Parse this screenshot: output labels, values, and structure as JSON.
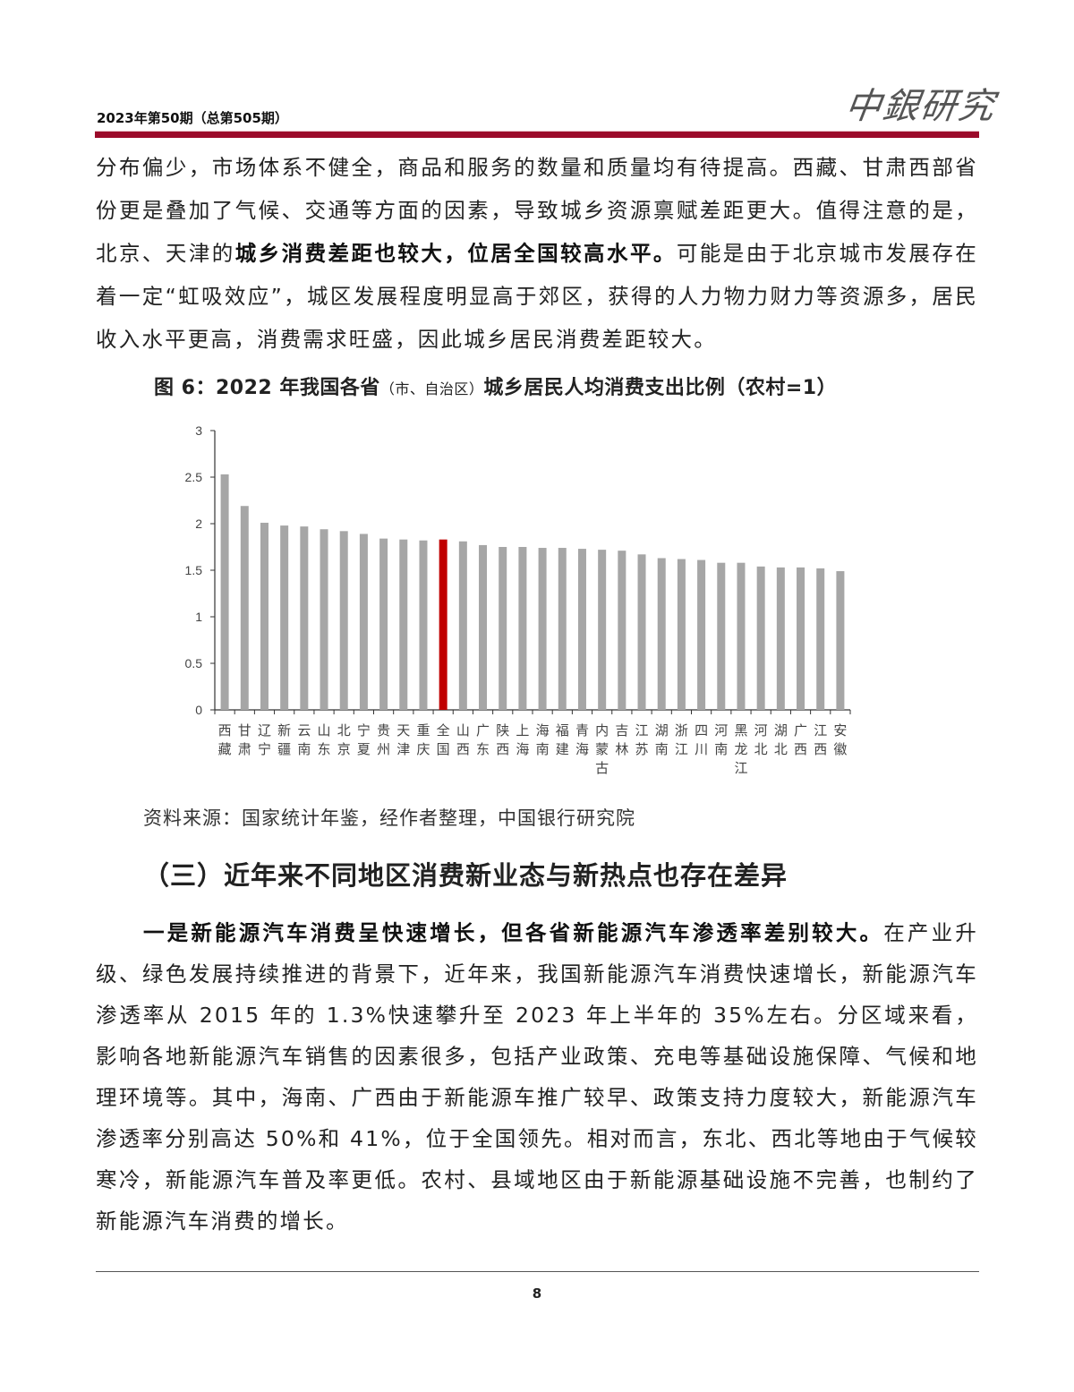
{
  "header": {
    "issue": "2023年第50期（总第505期）",
    "logo_text": "中銀研究"
  },
  "paragraph1": {
    "seg1": "分布偏少，市场体系不健全，商品和服务的数量和质量均有待提高。西藏、甘肃西部省份更是叠加了气候、交通等方面的因素，导致城乡资源禀赋差距更大。值得注意的是，北京、天津的",
    "bold": "城乡消费差距也较大，位居全国较高水平。",
    "seg2": "可能是由于北京城市发展存在着一定“虹吸效应”，城区发展程度明显高于郊区，获得的人力物力财力等资源多，居民收入水平更高，消费需求旺盛，因此城乡居民消费差距较大。"
  },
  "figure": {
    "caption_main": "图 6：2022 年我国各省",
    "caption_small": "（市、自治区）",
    "caption_tail": "城乡居民人均消费支出比例（农村=1）",
    "source": "资料来源：国家统计年鉴，经作者整理，中国银行研究院"
  },
  "chart_data": {
    "type": "bar",
    "categories": [
      "西藏",
      "甘肃",
      "辽宁",
      "新疆",
      "云南",
      "山东",
      "北京",
      "宁夏",
      "贵州",
      "天津",
      "重庆",
      "全国",
      "山西",
      "广东",
      "陕西",
      "上海",
      "海南",
      "福建",
      "青海",
      "内蒙古",
      "吉林",
      "江苏",
      "湖南",
      "浙江",
      "四川",
      "河南",
      "黑龙江",
      "河北",
      "湖北",
      "广西",
      "江西",
      "安徽"
    ],
    "values": [
      2.53,
      2.19,
      2.01,
      1.98,
      1.97,
      1.94,
      1.92,
      1.89,
      1.84,
      1.83,
      1.82,
      1.83,
      1.81,
      1.77,
      1.75,
      1.75,
      1.74,
      1.74,
      1.73,
      1.72,
      1.71,
      1.67,
      1.63,
      1.62,
      1.61,
      1.58,
      1.58,
      1.54,
      1.53,
      1.53,
      1.52,
      1.49
    ],
    "highlight": "全国",
    "colors": {
      "bar": "#a6a6a6",
      "highlight": "#c00000"
    },
    "ylim": [
      0,
      3
    ],
    "yticks": [
      "0",
      "0.5",
      "1",
      "1.5",
      "2",
      "2.5",
      "3"
    ],
    "grid": false,
    "xlabel": "",
    "ylabel": ""
  },
  "section": {
    "title": "（三）近年来不同地区消费新业态与新热点也存在差异"
  },
  "paragraph2": {
    "bold": "一是新能源汽车消费呈快速增长，但各省新能源汽车渗透率差别较大。",
    "text": "在产业升级、绿色发展持续推进的背景下，近年来，我国新能源汽车消费快速增长，新能源汽车渗透率从 2015 年的 1.3%快速攀升至 2023 年上半年的 35%左右。分区域来看，影响各地新能源汽车销售的因素很多，包括产业政策、充电等基础设施保障、气候和地理环境等。其中，海南、广西由于新能源车推广较早、政策支持力度较大，新能源汽车渗透率分别高达 50%和 41%，位于全国领先。相对而言，东北、西北等地由于气候较寒冷，新能源汽车普及率更低。农村、县域地区由于新能源基础设施不完善，也制约了新能源汽车消费的增长。"
  },
  "footer": {
    "page_number": "8"
  }
}
